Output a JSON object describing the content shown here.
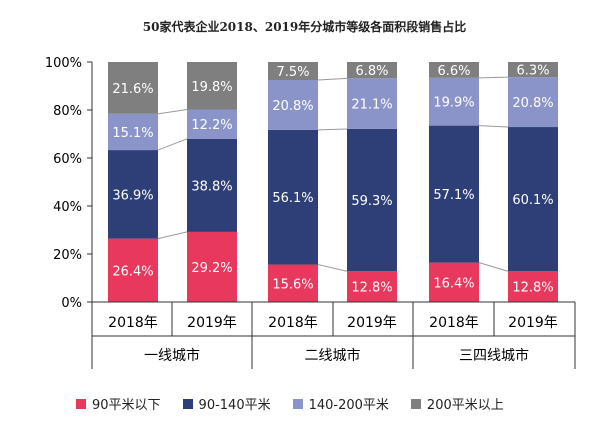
{
  "chart_data": {
    "type": "bar",
    "stacked": true,
    "title": "50家代表企业2018、2019年分城市等级各面积段销售占比",
    "ylim": [
      0,
      100
    ],
    "yticks": [
      "0%",
      "20%",
      "40%",
      "60%",
      "80%",
      "100%"
    ],
    "groups": [
      "一线城市",
      "二线城市",
      "三四线城市"
    ],
    "years": [
      "2018年",
      "2019年"
    ],
    "series": [
      {
        "name": "90平米以下",
        "color": "#e8385e",
        "values": [
          26.4,
          29.2,
          15.6,
          12.8,
          16.4,
          12.8
        ],
        "labels": [
          "26.4%",
          "29.2%",
          "15.6%",
          "12.8%",
          "16.4%",
          "12.8%"
        ]
      },
      {
        "name": "90-140平米",
        "color": "#2e3f78",
        "values": [
          36.9,
          38.8,
          56.1,
          59.3,
          57.1,
          60.1
        ],
        "labels": [
          "36.9%",
          "38.8%",
          "56.1%",
          "59.3%",
          "57.1%",
          "60.1%"
        ]
      },
      {
        "name": "140-200平米",
        "color": "#8b94c9",
        "values": [
          15.1,
          12.2,
          20.8,
          21.1,
          19.9,
          20.8
        ],
        "labels": [
          "15.1%",
          "12.2%",
          "20.8%",
          "21.1%",
          "19.9%",
          "20.8%"
        ]
      },
      {
        "name": "200平米以上",
        "color": "#7f7f7f",
        "values": [
          21.6,
          19.8,
          7.5,
          6.8,
          6.6,
          6.3
        ],
        "labels": [
          "21.6%",
          "19.8%",
          "7.5%",
          "6.8%",
          "6.6%",
          "6.3%"
        ]
      }
    ]
  }
}
